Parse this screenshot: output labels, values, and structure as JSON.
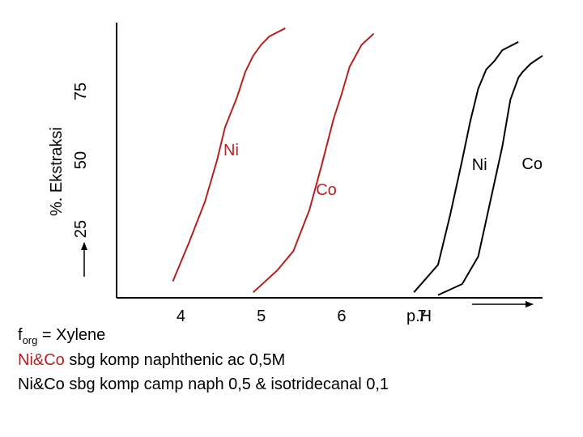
{
  "chart_data": {
    "type": "line",
    "title": "",
    "xlabel": "p.H",
    "ylabel": "%. Ekstraksi",
    "x_ticks": [
      "4",
      "5",
      "6",
      "7"
    ],
    "y_ticks": [
      "25",
      "50",
      "75"
    ],
    "xlim": [
      3.2,
      8.5
    ],
    "ylim": [
      0,
      100
    ],
    "grid": false,
    "series": [
      {
        "name": "Ni",
        "color": "#b22222",
        "x": [
          3.9,
          4.1,
          4.3,
          4.45,
          4.55,
          4.7,
          4.8,
          4.9,
          5.0,
          5.1,
          5.3
        ],
        "y": [
          6,
          20,
          35,
          50,
          62,
          73,
          82,
          88,
          92,
          95,
          98
        ]
      },
      {
        "name": "Co",
        "color": "#b22222",
        "x": [
          4.9,
          5.2,
          5.4,
          5.6,
          5.75,
          5.9,
          6.0,
          6.1,
          6.25,
          6.4
        ],
        "y": [
          2,
          10,
          17,
          32,
          48,
          65,
          74,
          84,
          92,
          96
        ]
      },
      {
        "name": "Ni",
        "color": "#000000",
        "x": [
          6.9,
          7.2,
          7.35,
          7.5,
          7.6,
          7.7,
          7.8,
          7.9,
          8.0,
          8.2
        ],
        "y": [
          2,
          12,
          30,
          50,
          64,
          76,
          83,
          86,
          90,
          93
        ]
      },
      {
        "name": "Co",
        "color": "#000000",
        "x": [
          7.2,
          7.5,
          7.7,
          7.85,
          8.0,
          8.1,
          8.2,
          8.25,
          8.35,
          8.5
        ],
        "y": [
          1,
          5,
          15,
          35,
          55,
          72,
          80,
          82,
          85,
          88
        ]
      }
    ]
  },
  "caption": {
    "line1_prefix": "f",
    "line1_sub": "org",
    "line1_rest": " = Xylene",
    "line2_red": "Ni&Co",
    "line2_rest": " sbg komp naphthenic ac 0,5M",
    "line3": "Ni&Co sbg komp camp naph 0,5 & isotridecanal 0,1"
  }
}
